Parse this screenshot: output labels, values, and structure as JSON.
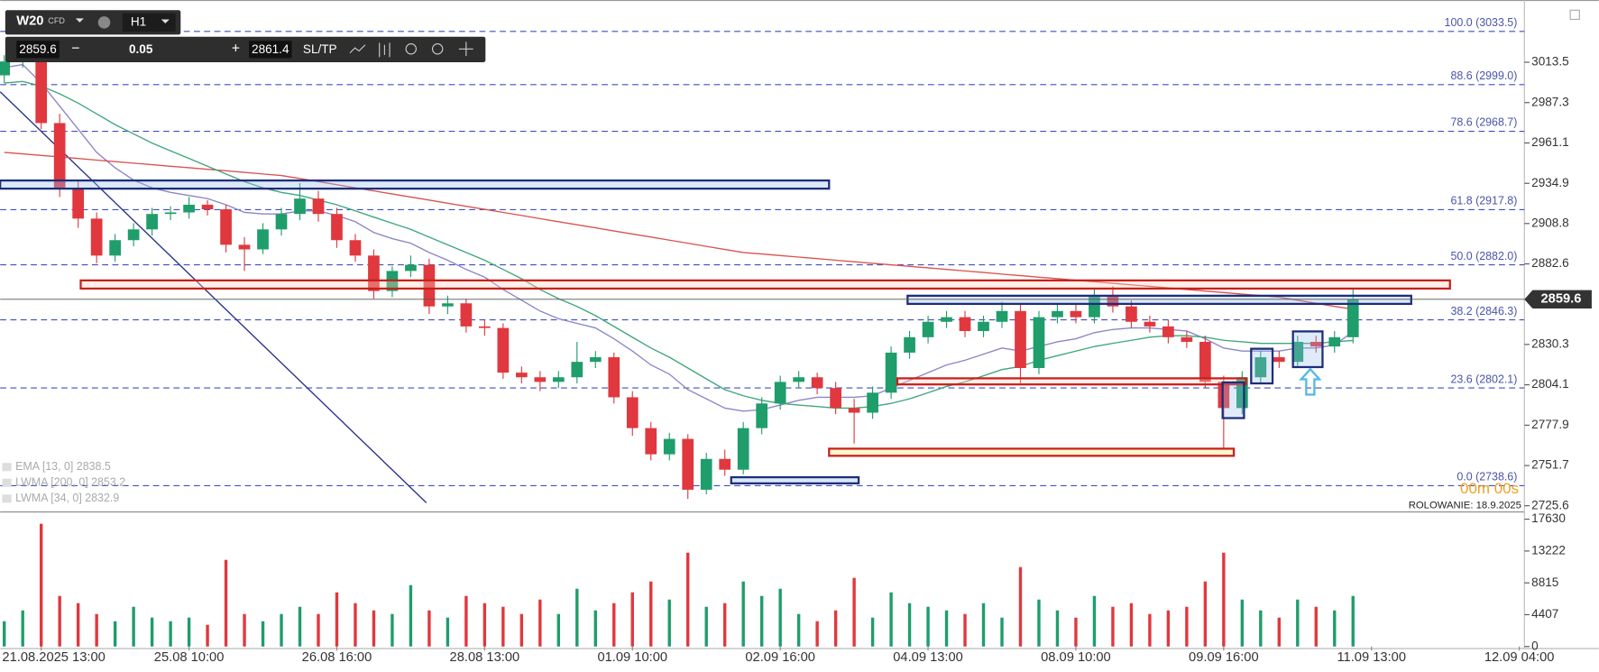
{
  "toolbar": {
    "symbol": "W20",
    "symbol_type": "CFD",
    "timeframe": "H1",
    "bid": 2859.6,
    "lot": 0.05,
    "ask": 2861.4,
    "sltp": "SL/TP"
  },
  "rollover": "ROLOWANIE: 18.9.2025",
  "timer": "00m 00s",
  "chart_data": {
    "type": "candlestick",
    "categories": [
      null,
      null,
      "21.08.2025 13:00",
      null,
      null,
      null,
      null,
      null,
      null,
      null,
      "25.08 10:00",
      null,
      null,
      null,
      null,
      null,
      null,
      null,
      "26.08 16:00",
      null,
      null,
      null,
      null,
      null,
      null,
      null,
      "28.08 13:00",
      null,
      null,
      null,
      null,
      null,
      null,
      null,
      "01.09 10:00",
      null,
      null,
      null,
      null,
      null,
      null,
      null,
      "02.09 16:00",
      null,
      null,
      null,
      null,
      null,
      null,
      null,
      "04.09 13:00",
      null,
      null,
      null,
      null,
      null,
      null,
      null,
      "08.09 10:00",
      null,
      null,
      null,
      null,
      null,
      null,
      null,
      "09.09 16:00",
      null,
      null,
      null,
      null,
      null,
      null,
      null,
      "11.09 13:00",
      null,
      null,
      null,
      null,
      null,
      null,
      null,
      "12.09 04:00"
    ],
    "candles": [
      [
        3005,
        3018,
        3000,
        3014
      ],
      [
        3014,
        3026,
        3010,
        3021
      ],
      [
        3021,
        3024,
        2970,
        2974
      ],
      [
        2974,
        2980,
        2926,
        2931
      ],
      [
        2931,
        2936,
        2906,
        2912
      ],
      [
        2912,
        2916,
        2883,
        2888
      ],
      [
        2888,
        2902,
        2884,
        2898
      ],
      [
        2898,
        2909,
        2894,
        2905
      ],
      [
        2905,
        2919,
        2901,
        2915
      ],
      [
        2915,
        2920,
        2911,
        2916
      ],
      [
        2916,
        2926,
        2912,
        2921
      ],
      [
        2921,
        2924,
        2914,
        2918
      ],
      [
        2918,
        2921,
        2890,
        2895
      ],
      [
        2895,
        2900,
        2878,
        2892
      ],
      [
        2892,
        2909,
        2889,
        2905
      ],
      [
        2905,
        2919,
        2901,
        2915
      ],
      [
        2915,
        2935,
        2911,
        2925
      ],
      [
        2925,
        2930,
        2910,
        2915
      ],
      [
        2915,
        2919,
        2893,
        2898
      ],
      [
        2898,
        2902,
        2884,
        2888
      ],
      [
        2888,
        2892,
        2860,
        2865
      ],
      [
        2865,
        2881,
        2861,
        2878
      ],
      [
        2878,
        2888,
        2874,
        2882
      ],
      [
        2882,
        2886,
        2850,
        2855
      ],
      [
        2855,
        2862,
        2850,
        2857
      ],
      [
        2857,
        2860,
        2838,
        2842
      ],
      [
        2842,
        2846,
        2836,
        2841
      ],
      [
        2841,
        2844,
        2808,
        2812
      ],
      [
        2812,
        2816,
        2805,
        2809
      ],
      [
        2809,
        2813,
        2800,
        2806
      ],
      [
        2806,
        2813,
        2802,
        2809
      ],
      [
        2809,
        2832,
        2805,
        2819
      ],
      [
        2819,
        2826,
        2815,
        2822
      ],
      [
        2822,
        2825,
        2792,
        2796
      ],
      [
        2796,
        2800,
        2771,
        2776
      ],
      [
        2776,
        2780,
        2755,
        2759
      ],
      [
        2759,
        2773,
        2755,
        2769
      ],
      [
        2769,
        2772,
        2730,
        2736
      ],
      [
        2736,
        2760,
        2733,
        2756
      ],
      [
        2756,
        2762,
        2745,
        2749
      ],
      [
        2749,
        2780,
        2746,
        2776
      ],
      [
        2776,
        2796,
        2772,
        2792
      ],
      [
        2792,
        2810,
        2788,
        2806
      ],
      [
        2806,
        2813,
        2802,
        2809
      ],
      [
        2809,
        2812,
        2798,
        2802
      ],
      [
        2802,
        2806,
        2785,
        2789
      ],
      [
        2789,
        2795,
        2766,
        2786
      ],
      [
        2786,
        2803,
        2782,
        2799
      ],
      [
        2799,
        2829,
        2795,
        2825
      ],
      [
        2825,
        2839,
        2821,
        2835
      ],
      [
        2835,
        2849,
        2831,
        2845
      ],
      [
        2845,
        2852,
        2841,
        2848
      ],
      [
        2848,
        2852,
        2835,
        2839
      ],
      [
        2839,
        2849,
        2835,
        2845
      ],
      [
        2845,
        2858,
        2841,
        2852
      ],
      [
        2852,
        2856,
        2805,
        2815
      ],
      [
        2815,
        2852,
        2811,
        2848
      ],
      [
        2848,
        2857,
        2844,
        2852
      ],
      [
        2852,
        2856,
        2844,
        2848
      ],
      [
        2848,
        2867,
        2844,
        2862
      ],
      [
        2862,
        2868,
        2851,
        2855
      ],
      [
        2855,
        2859,
        2841,
        2845
      ],
      [
        2845,
        2849,
        2838,
        2842
      ],
      [
        2842,
        2846,
        2831,
        2835
      ],
      [
        2835,
        2839,
        2828,
        2832
      ],
      [
        2832,
        2836,
        2802,
        2806
      ],
      [
        2806,
        2810,
        2762,
        2789
      ],
      [
        2789,
        2813,
        2785,
        2809
      ],
      [
        2809,
        2826,
        2805,
        2822
      ],
      [
        2822,
        2826,
        2815,
        2819
      ],
      [
        2819,
        2836,
        2815,
        2832
      ],
      [
        2832,
        2836,
        2825,
        2829
      ],
      [
        2829,
        2839,
        2825,
        2835
      ],
      [
        2835,
        2866,
        2831,
        2859.6
      ],
      null,
      null,
      null,
      null,
      null,
      null,
      null,
      null,
      null
    ],
    "up_color": "#1f9d6b",
    "down_color": "#e0383e",
    "ylim": [
      2721.6,
      3053.9
    ],
    "yticks": [
      3013.5,
      2987.3,
      2961.1,
      2934.9,
      2908.8,
      2882.6,
      2830.3,
      2804.1,
      2777.9,
      2751.7,
      2725.6
    ],
    "current_price": 2859.6,
    "fib_levels": [
      {
        "value": 3033.5,
        "label": "100.0 (3033.5)"
      },
      {
        "value": 2999.0,
        "label": "88.6 (2999.0)"
      },
      {
        "value": 2968.7,
        "label": "78.6 (2968.7)"
      },
      {
        "value": 2917.8,
        "label": "61.8 (2917.8)"
      },
      {
        "value": 2882.0,
        "label": "50.0 (2882.0)"
      },
      {
        "value": 2846.3,
        "label": "38.2 (2846.3)"
      },
      {
        "value": 2802.1,
        "label": "23.6 (2802.1)"
      },
      {
        "value": 2738.6,
        "label": "0.0 (2738.6)"
      }
    ],
    "indicators": [
      {
        "name": "EMA [13, 0] 2838.5",
        "color": "#8b86c8",
        "values": [
          3010,
          3012,
          3000,
          2985,
          2970,
          2955,
          2945,
          2937,
          2932,
          2929,
          2927,
          2925,
          2921,
          2916,
          2915,
          2915,
          2917,
          2917,
          2914,
          2910,
          2903,
          2899,
          2896,
          2890,
          2885,
          2879,
          2874,
          2866,
          2859,
          2852,
          2847,
          2844,
          2841,
          2834,
          2826,
          2817,
          2811,
          2801,
          2795,
          2789,
          2787,
          2788,
          2791,
          2794,
          2796,
          2796,
          2796,
          2797,
          2802,
          2807,
          2812,
          2817,
          2820,
          2824,
          2828,
          2826,
          2829,
          2832,
          2834,
          2838,
          2840,
          2841,
          2841,
          2840,
          2839,
          2834,
          2828,
          2826,
          2826,
          2826,
          2828,
          2828,
          2830,
          2838.5,
          null,
          null,
          null,
          null,
          null,
          null,
          null,
          null,
          null
        ]
      },
      {
        "name": "LWMA [200, 0] 2853.2",
        "color": "#d9534f",
        "values": [
          2955,
          2954,
          2953,
          2952,
          2951,
          2950,
          2949,
          2948,
          2947,
          2946,
          2945,
          2944,
          2943,
          2942,
          2941,
          2940,
          2938,
          2936,
          2934,
          2932,
          2930,
          2928,
          2926,
          2924,
          2922,
          2920,
          2918,
          2916,
          2914,
          2912,
          2910,
          2908,
          2906,
          2904,
          2902,
          2900,
          2898,
          2896,
          2894,
          2892,
          2890,
          2889,
          2888,
          2887,
          2886,
          2885,
          2884,
          2883,
          2882,
          2881,
          2880,
          2879,
          2878,
          2877,
          2876,
          2875,
          2874,
          2873,
          2872,
          2871,
          2870,
          2869,
          2868,
          2867,
          2866,
          2865,
          2864,
          2863,
          2862,
          2861,
          2859,
          2857,
          2855,
          2853.2,
          null,
          null,
          null,
          null,
          null,
          null,
          null,
          null,
          null
        ]
      },
      {
        "name": "LWMA [34, 0] 2832.9",
        "color": "#3fa77a",
        "values": [
          3000,
          3001,
          2998,
          2993,
          2987,
          2980,
          2973,
          2967,
          2961,
          2956,
          2951,
          2946,
          2941,
          2936,
          2932,
          2929,
          2927,
          2924,
          2921,
          2917,
          2913,
          2909,
          2905,
          2900,
          2895,
          2890,
          2885,
          2879,
          2873,
          2866,
          2860,
          2855,
          2849,
          2842,
          2835,
          2828,
          2822,
          2815,
          2808,
          2801,
          2797,
          2794,
          2792,
          2791,
          2790,
          2789,
          2789,
          2790,
          2792,
          2795,
          2799,
          2803,
          2806,
          2810,
          2814,
          2816,
          2820,
          2823,
          2826,
          2829,
          2831,
          2833,
          2835,
          2836,
          2836,
          2835,
          2833,
          2832,
          2831,
          2831,
          2831,
          2831,
          2832,
          2832.9,
          null,
          null,
          null,
          null,
          null,
          null,
          null,
          null,
          null
        ]
      }
    ],
    "volume": {
      "values": [
        3500,
        5000,
        17000,
        7000,
        6000,
        4500,
        3500,
        5500,
        4000,
        3500,
        4000,
        3000,
        12000,
        4500,
        3500,
        4500,
        5500,
        4500,
        7500,
        6000,
        5000,
        4500,
        8500,
        5000,
        4000,
        7000,
        6000,
        5500,
        4500,
        6500,
        4500,
        8000,
        5000,
        6000,
        7500,
        9000,
        6500,
        13000,
        5500,
        6000,
        9000,
        7000,
        8000,
        4500,
        3500,
        5000,
        9500,
        4000,
        7500,
        6000,
        5500,
        5000,
        4500,
        6000,
        4000,
        11000,
        6500,
        5000,
        4000,
        7000,
        5500,
        6000,
        4500,
        5000,
        5500,
        9000,
        13000,
        6500,
        5000,
        4000,
        6500,
        5500,
        5000,
        7000,
        null,
        null,
        null,
        null,
        null,
        null,
        null,
        null,
        null
      ],
      "ylim": [
        0,
        18500
      ],
      "yticks": [
        17630,
        13222,
        8815,
        4407,
        0
      ]
    }
  }
}
